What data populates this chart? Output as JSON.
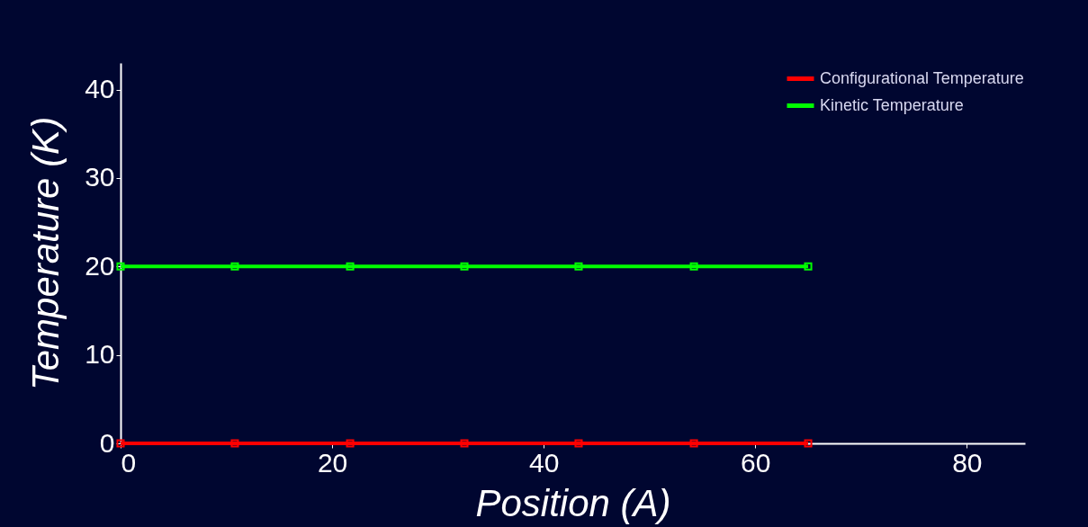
{
  "chart_data": {
    "type": "line",
    "xlabel": "Position (A)",
    "ylabel": "Temperature (K)",
    "x": [
      0,
      10.8,
      21.7,
      32.5,
      43.3,
      54.2,
      65
    ],
    "series": [
      {
        "name": "Configurational Temperature",
        "color": "#ff0000",
        "values": [
          0,
          0,
          0,
          0,
          0,
          0,
          0
        ]
      },
      {
        "name": "Kinetic Temperature",
        "color": "#00ff00",
        "values": [
          20,
          20,
          20,
          20,
          20,
          20,
          20
        ]
      }
    ],
    "xlim": [
      0,
      85.5
    ],
    "xticks": [
      0,
      20,
      40,
      60,
      80
    ],
    "ylim": [
      0,
      43
    ],
    "yticks": [
      0,
      10,
      20,
      30,
      40
    ],
    "grid": false,
    "legend": "top right",
    "marker": "square",
    "line_style": "solid"
  }
}
